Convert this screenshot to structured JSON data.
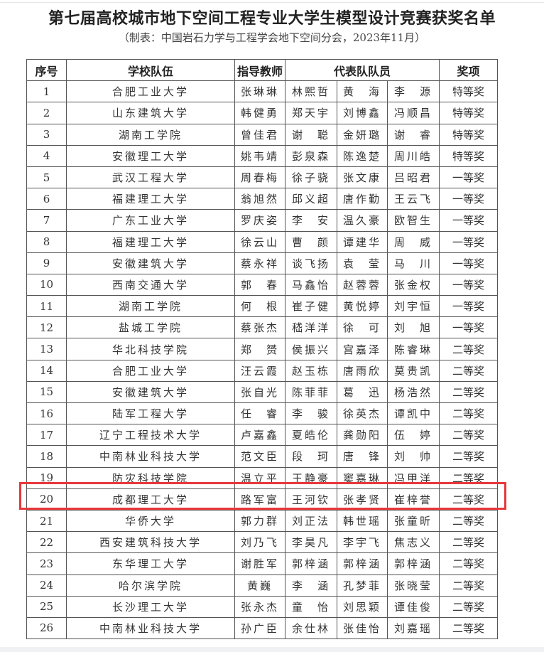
{
  "document": {
    "title": "第七届高校城市地下空间工程专业大学生模型设计竞赛获奖名单",
    "subtitle": "（制表：中国岩石力学与工程学会地下空间分会，2023年11月）",
    "headers": {
      "no": "序号",
      "school": "学校队伍",
      "teacher": "指导教师",
      "members": "代表队队员",
      "award": "奖项"
    },
    "highlight_color": "#e8373a",
    "highlighted_row": "19",
    "rows": [
      {
        "no": "1",
        "school": "合肥工业大学",
        "teacher": "张琳琳",
        "m1": "林熙哲",
        "m2": "黄　海",
        "m3": "李　源",
        "award": "特等奖"
      },
      {
        "no": "2",
        "school": "山东建筑大学",
        "teacher": "韩健勇",
        "m1": "郑天宇",
        "m2": "刘博鑫",
        "m3": "冯顺昌",
        "award": "特等奖"
      },
      {
        "no": "3",
        "school": "湖南工学院",
        "teacher": "曾佳君",
        "m1": "谢　聪",
        "m2": "金妍璐",
        "m3": "谢　睿",
        "award": "特等奖"
      },
      {
        "no": "4",
        "school": "安徽理工大学",
        "teacher": "姚韦靖",
        "m1": "彭泉森",
        "m2": "陈逸楚",
        "m3": "周川皓",
        "award": "特等奖"
      },
      {
        "no": "5",
        "school": "武汉工程大学",
        "teacher": "周春梅",
        "m1": "徐子骁",
        "m2": "张文康",
        "m3": "吕昭君",
        "award": "一等奖"
      },
      {
        "no": "6",
        "school": "福建理工大学",
        "teacher": "翁旭然",
        "m1": "邱义超",
        "m2": "唐作勤",
        "m3": "王云飞",
        "award": "一等奖"
      },
      {
        "no": "7",
        "school": "广东工业大学",
        "teacher": "罗庆姿",
        "m1": "李　安",
        "m2": "温久豪",
        "m3": "欧智生",
        "award": "一等奖"
      },
      {
        "no": "8",
        "school": "福建理工大学",
        "teacher": "徐云山",
        "m1": "曹　颜",
        "m2": "谭建华",
        "m3": "周　威",
        "award": "一等奖"
      },
      {
        "no": "9",
        "school": "安徽建筑大学",
        "teacher": "蔡永祥",
        "m1": "谈飞扬",
        "m2": "袁　莹",
        "m3": "马　川",
        "award": "一等奖"
      },
      {
        "no": "10",
        "school": "西南交通大学",
        "teacher": "郭　春",
        "m1": "马鑫怡",
        "m2": "赵蓉蓉",
        "m3": "张金权",
        "award": "一等奖"
      },
      {
        "no": "11",
        "school": "湖南工学院",
        "teacher": "何　根",
        "m1": "崔子健",
        "m2": "黄悦婷",
        "m3": "刘宇恒",
        "award": "一等奖"
      },
      {
        "no": "12",
        "school": "盐城工学院",
        "teacher": "蔡张杰",
        "m1": "嵇洋洋",
        "m2": "徐　可",
        "m3": "刘　旭",
        "award": "一等奖"
      },
      {
        "no": "13",
        "school": "华北科技学院",
        "teacher": "郑　赟",
        "m1": "侯振兴",
        "m2": "宫嘉泽",
        "m3": "陈睿琳",
        "award": "二等奖"
      },
      {
        "no": "14",
        "school": "合肥工业大学",
        "teacher": "汪云霞",
        "m1": "赵玉栋",
        "m2": "唐雨欣",
        "m3": "莫贵凯",
        "award": "二等奖"
      },
      {
        "no": "15",
        "school": "安徽建筑大学",
        "teacher": "张自光",
        "m1": "陈菲菲",
        "m2": "葛　迅",
        "m3": "杨浩然",
        "award": "二等奖"
      },
      {
        "no": "16",
        "school": "陆军工程大学",
        "teacher": "任　睿",
        "m1": "李　骏",
        "m2": "徐英杰",
        "m3": "谭凯中",
        "award": "二等奖"
      },
      {
        "no": "17",
        "school": "辽宁工程技术大学",
        "teacher": "卢嘉鑫",
        "m1": "夏皓伦",
        "m2": "龚勋阳",
        "m3": "伍　婷",
        "award": "二等奖"
      },
      {
        "no": "18",
        "school": "中南林业科技大学",
        "teacher": "范文臣",
        "m1": "段　珂",
        "m2": "唐　锋",
        "m3": "刘　帅",
        "award": "二等奖"
      },
      {
        "no": "19",
        "school": "防灾科技学院",
        "teacher": "温立平",
        "m1": "王静豪",
        "m2": "窦嘉琳",
        "m3": "冯甲洋",
        "award": "二等奖"
      },
      {
        "no": "20",
        "school": "成都理工大学",
        "teacher": "路军富",
        "m1": "王河钦",
        "m2": "张孝贤",
        "m3": "崔梓誉",
        "award": "二等奖"
      },
      {
        "no": "21",
        "school": "华侨大学",
        "teacher": "郭力群",
        "m1": "刘正法",
        "m2": "韩世瑶",
        "m3": "张童昕",
        "award": "二等奖"
      },
      {
        "no": "22",
        "school": "西安建筑科技大学",
        "teacher": "刘乃飞",
        "m1": "李昊凡",
        "m2": "李宇飞",
        "m3": "焦志义",
        "award": "二等奖"
      },
      {
        "no": "23",
        "school": "东华理工大学",
        "teacher": "谢胜军",
        "m1": "郭梓涵",
        "m2": "郭梓涵",
        "m3": "郭梓涵",
        "award": "二等奖"
      },
      {
        "no": "24",
        "school": "哈尔滨学院",
        "teacher": "黄巍",
        "m1": "李　涵",
        "m2": "孔梦菲",
        "m3": "张晓莹",
        "award": "二等奖"
      },
      {
        "no": "25",
        "school": "长沙理工大学",
        "teacher": "张永杰",
        "m1": "童　怡",
        "m2": "刘思颖",
        "m3": "谭佳俊",
        "award": "二等奖"
      },
      {
        "no": "26",
        "school": "中南林业科技大学",
        "teacher": "孙广臣",
        "m1": "余仕林",
        "m2": "张佳怡",
        "m3": "刘嘉瑶",
        "award": "二等奖"
      }
    ]
  }
}
